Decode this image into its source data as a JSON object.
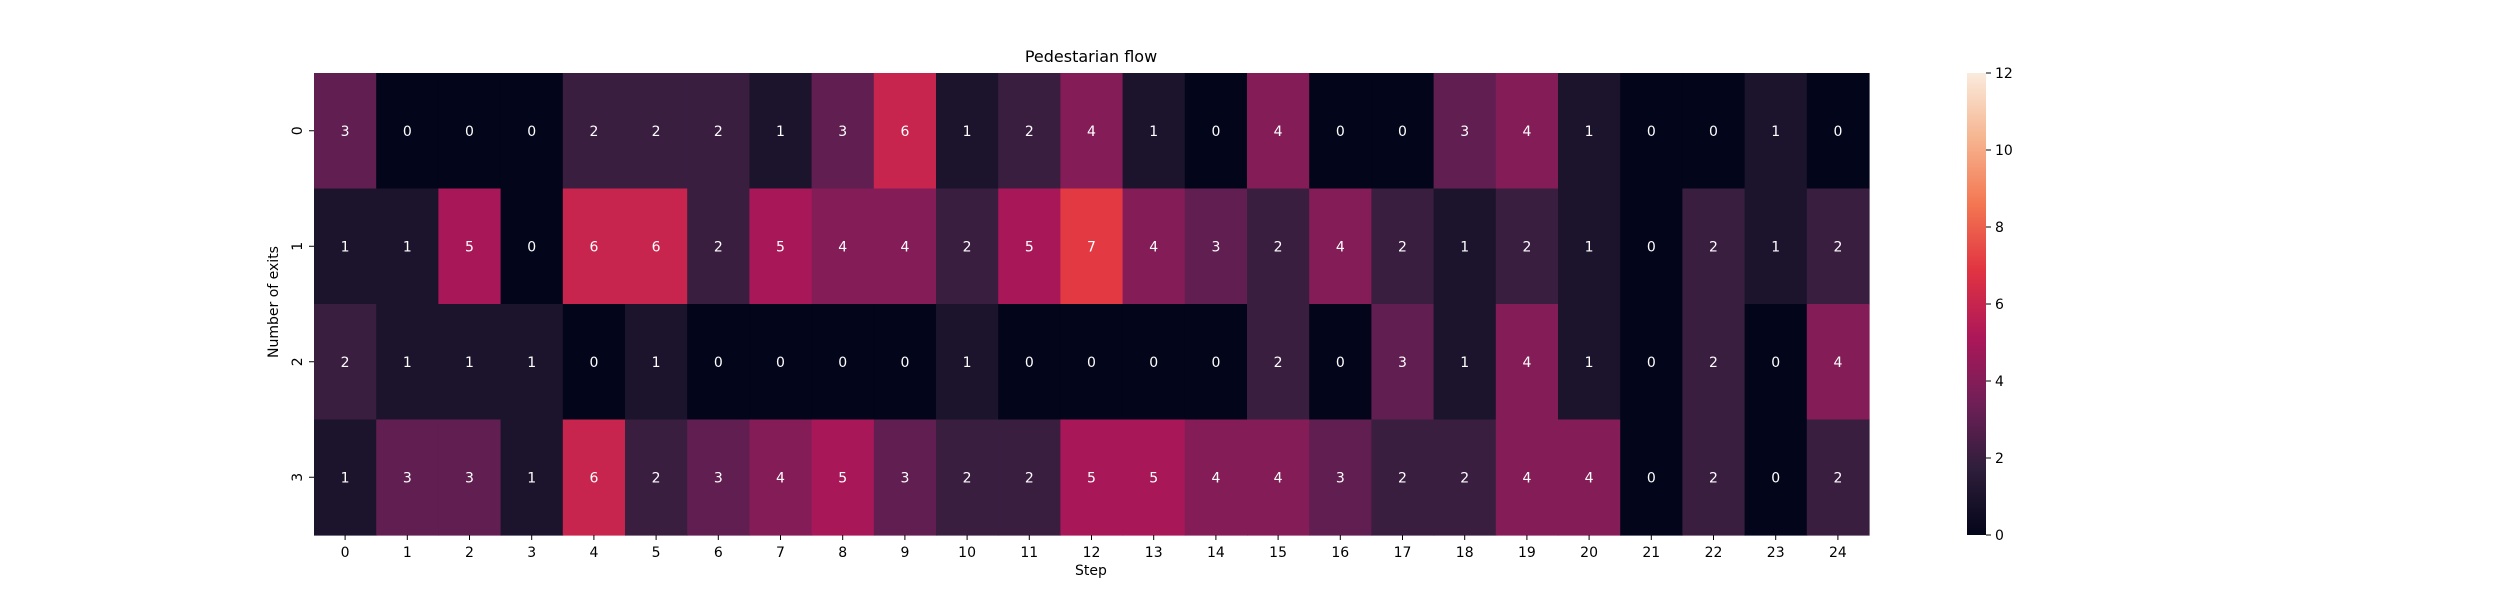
{
  "chart_data": {
    "type": "heatmap",
    "title": "Pedestarian flow",
    "xlabel": "Step",
    "ylabel": "Number of exits",
    "x_categories": [
      "0",
      "1",
      "2",
      "3",
      "4",
      "5",
      "6",
      "7",
      "8",
      "9",
      "10",
      "11",
      "12",
      "13",
      "14",
      "15",
      "16",
      "17",
      "18",
      "19",
      "20",
      "21",
      "22",
      "23",
      "24"
    ],
    "y_categories": [
      "0",
      "1",
      "2",
      "3"
    ],
    "values": [
      [
        3,
        0,
        0,
        0,
        2,
        2,
        2,
        1,
        3,
        6,
        1,
        2,
        4,
        1,
        0,
        4,
        0,
        0,
        3,
        4,
        1,
        0,
        0,
        1,
        0
      ],
      [
        1,
        1,
        5,
        0,
        6,
        6,
        2,
        5,
        4,
        4,
        2,
        5,
        7,
        4,
        3,
        2,
        4,
        2,
        1,
        2,
        1,
        0,
        2,
        1,
        2
      ],
      [
        2,
        1,
        1,
        1,
        0,
        1,
        0,
        0,
        0,
        0,
        1,
        0,
        0,
        0,
        0,
        2,
        0,
        3,
        1,
        4,
        1,
        0,
        2,
        0,
        4
      ],
      [
        1,
        3,
        3,
        1,
        6,
        2,
        3,
        4,
        5,
        3,
        2,
        2,
        5,
        5,
        4,
        4,
        3,
        2,
        2,
        4,
        4,
        0,
        2,
        0,
        2
      ]
    ],
    "colorbar": {
      "range": [
        0,
        12
      ],
      "ticks": [
        "0",
        "2",
        "4",
        "6",
        "8",
        "10",
        "12"
      ],
      "colormap": "rocket",
      "stops": [
        "#03051a",
        "#2e1e3b",
        "#701f57",
        "#ad1759",
        "#e13342",
        "#f37651",
        "#f6b48f",
        "#faebdd"
      ]
    },
    "grid": false,
    "legend": "colorbar-right"
  }
}
